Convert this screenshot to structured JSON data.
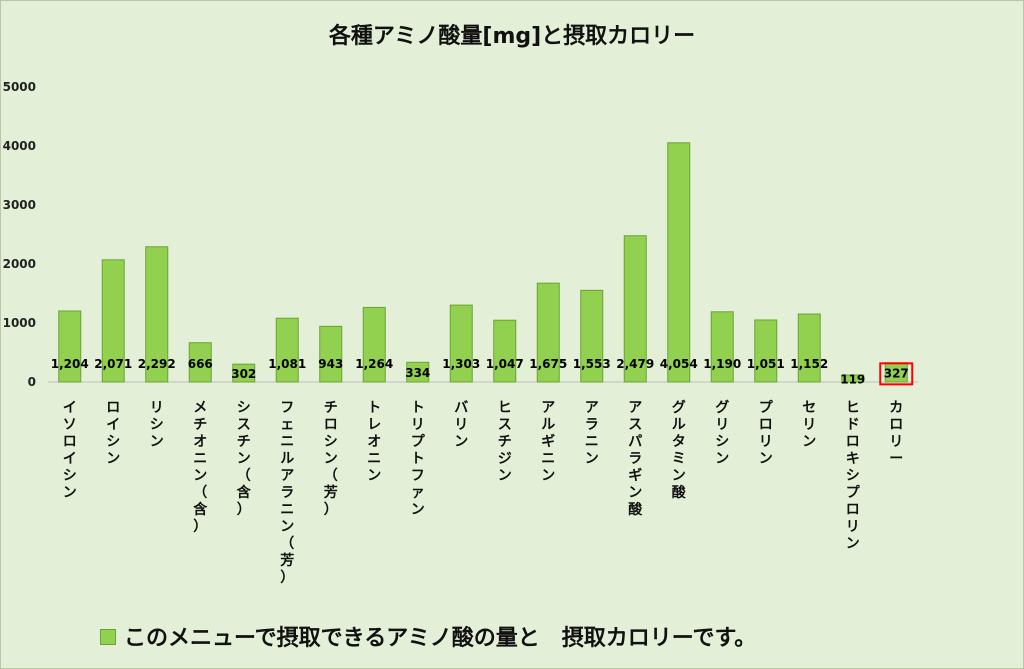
{
  "chart_data": {
    "type": "bar",
    "title": "各種アミノ酸量[mg]と摂取カロリー",
    "categories": [
      "イソロイシン",
      "ロイシン",
      "リシン",
      "メチオニン（含）",
      "シスチン（含）",
      "フェニルアラニン（芳）",
      "チロシン（芳）",
      "トレオニン",
      "トリプトファン",
      "バリン",
      "ヒスチジン",
      "アルギニン",
      "アラニン",
      "アスパラギン酸",
      "グルタミン酸",
      "グリシン",
      "プロリン",
      "セリン",
      "ヒドロキシプロリン",
      "カロリー"
    ],
    "values": [
      1204,
      2071,
      2292,
      666,
      302,
      1081,
      943,
      1264,
      334,
      1303,
      1047,
      1675,
      1553,
      2479,
      4054,
      1190,
      1051,
      1152,
      119,
      327
    ],
    "value_labels": [
      "1,204",
      "2,071",
      "2,292",
      "666",
      "302",
      "1,081",
      "943",
      "1,264",
      "334",
      "1,303",
      "1,047",
      "1,675",
      "1,553",
      "2,479",
      "4,054",
      "1,190",
      "1,051",
      "1,152",
      "119",
      "327"
    ],
    "y_ticks": [
      "0",
      "1000",
      "2000",
      "3000",
      "4000",
      "5000"
    ],
    "ylim": [
      0,
      5000
    ],
    "grid": false,
    "highlighted_category": "カロリー",
    "bar_color": "#92d050",
    "bar_edge_color": "#6aa334",
    "highlight_color": "#ff0000",
    "legend": {
      "position": "bottom",
      "entries": [
        "このメニューで摂取できるアミノ酸の量と　摂取カロリーです。"
      ]
    }
  }
}
